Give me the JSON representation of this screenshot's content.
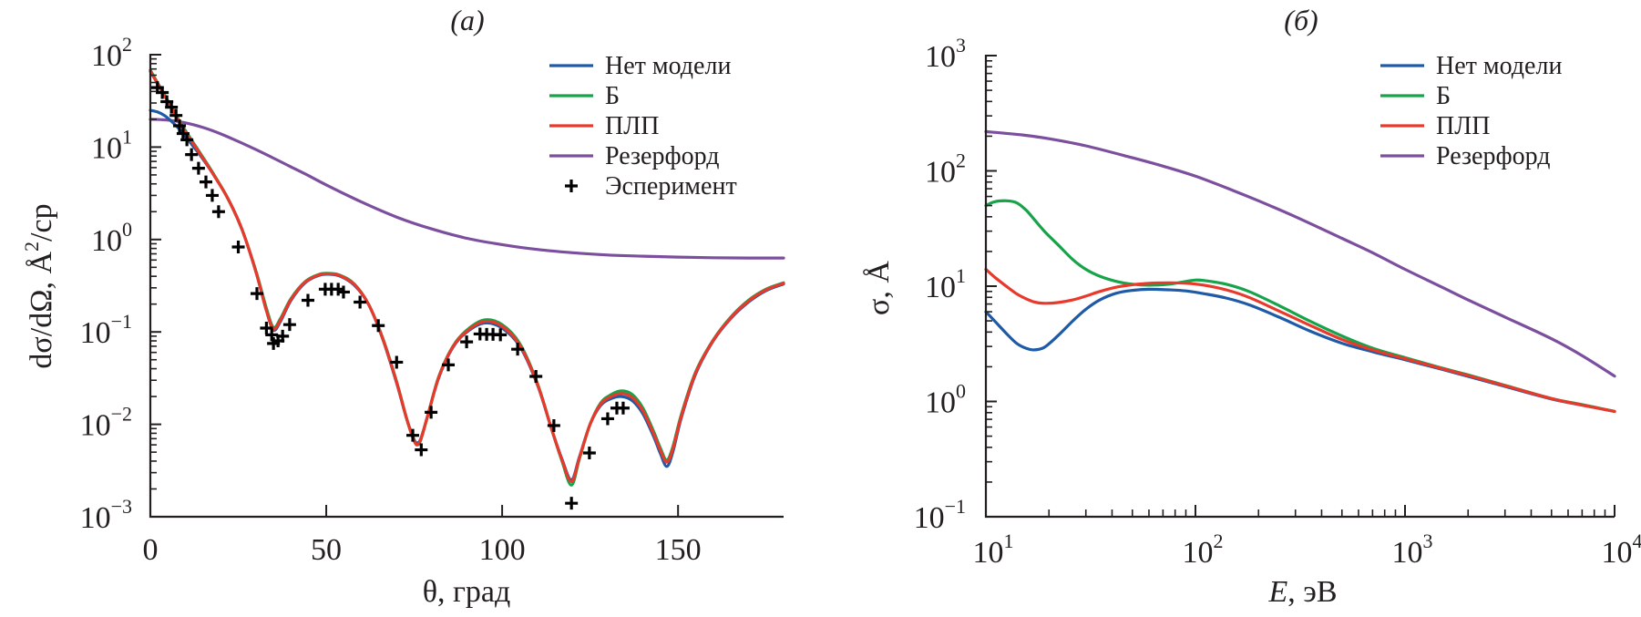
{
  "chart_data": [
    {
      "type": "line",
      "panel_title": "(a)",
      "xlabel": "θ, град",
      "ylabel": "dσ/dΩ, Å²/ср",
      "ylabel_parts": {
        "main": "dσ/dΩ, Å",
        "sup": "2",
        "tail": "/ср"
      },
      "xscale": "linear",
      "yscale": "log",
      "xlim": [
        0,
        180
      ],
      "ylim": [
        0.001,
        100
      ],
      "xticks": [
        0,
        50,
        100,
        150
      ],
      "xtick_labels": [
        "0",
        "50",
        "100",
        "150"
      ],
      "yticks_exp": [
        2,
        1,
        0,
        -1,
        -2,
        -3
      ],
      "grid": false,
      "legend_position": "top-right",
      "series": [
        {
          "name": "Нет модели",
          "color": "#1f5aa6",
          "x": [
            0,
            2,
            4,
            6,
            8,
            10,
            14,
            18,
            22,
            26,
            30,
            33,
            35,
            37,
            40,
            44,
            48,
            51,
            54,
            58,
            62,
            66,
            70,
            73,
            75,
            76,
            77,
            79,
            82,
            86,
            90,
            95,
            100,
            105,
            110,
            114,
            117,
            119.7,
            122,
            125,
            128,
            131,
            134,
            137,
            140,
            143,
            145,
            146.8,
            148.5,
            151,
            155,
            160,
            165,
            170,
            175,
            180
          ],
          "y": [
            25,
            24,
            22,
            19,
            16,
            13,
            8.3,
            5.0,
            2.8,
            1.3,
            0.45,
            0.17,
            0.105,
            0.13,
            0.22,
            0.34,
            0.41,
            0.42,
            0.4,
            0.32,
            0.2,
            0.085,
            0.028,
            0.011,
            0.0068,
            0.0063,
            0.0072,
            0.013,
            0.032,
            0.068,
            0.1,
            0.125,
            0.11,
            0.07,
            0.027,
            0.009,
            0.0042,
            0.0025,
            0.0045,
            0.01,
            0.016,
            0.019,
            0.02,
            0.018,
            0.013,
            0.0075,
            0.0048,
            0.0035,
            0.005,
            0.012,
            0.035,
            0.08,
            0.14,
            0.21,
            0.28,
            0.33
          ]
        },
        {
          "name": "Б",
          "color": "#17a34a",
          "x": [
            0,
            2,
            4,
            6,
            8,
            10,
            14,
            18,
            22,
            26,
            30,
            33,
            35,
            37,
            40,
            44,
            48,
            51,
            54,
            58,
            62,
            66,
            70,
            73,
            75,
            76,
            77,
            79,
            82,
            86,
            90,
            95,
            100,
            105,
            110,
            114,
            117,
            119.7,
            122,
            125,
            128,
            131,
            134,
            137,
            140,
            143,
            145,
            146.8,
            148.5,
            151,
            155,
            160,
            165,
            170,
            175,
            180
          ],
          "y": [
            68,
            50,
            37,
            27,
            20,
            15,
            8.8,
            5.1,
            2.8,
            1.3,
            0.46,
            0.18,
            0.112,
            0.14,
            0.23,
            0.35,
            0.42,
            0.43,
            0.41,
            0.33,
            0.2,
            0.087,
            0.029,
            0.011,
            0.0066,
            0.006,
            0.007,
            0.013,
            0.033,
            0.07,
            0.105,
            0.135,
            0.12,
            0.075,
            0.028,
            0.009,
            0.004,
            0.0022,
            0.0043,
            0.01,
            0.017,
            0.021,
            0.023,
            0.021,
            0.015,
            0.0085,
            0.0055,
            0.0041,
            0.0057,
            0.013,
            0.037,
            0.082,
            0.145,
            0.22,
            0.29,
            0.34
          ]
        },
        {
          "name": "ПЛП",
          "color": "#e8392a",
          "x": [
            0,
            2,
            4,
            6,
            8,
            10,
            14,
            18,
            22,
            26,
            30,
            33,
            35,
            37,
            40,
            44,
            48,
            51,
            54,
            58,
            62,
            66,
            70,
            73,
            75,
            76,
            77,
            79,
            82,
            86,
            90,
            95,
            100,
            105,
            110,
            114,
            117,
            119.7,
            122,
            125,
            128,
            131,
            134,
            137,
            140,
            143,
            145,
            146.8,
            148.5,
            151,
            155,
            160,
            165,
            170,
            175,
            180
          ],
          "y": [
            66,
            49,
            36,
            26.5,
            19.5,
            14.5,
            8.6,
            5.0,
            2.8,
            1.3,
            0.45,
            0.17,
            0.108,
            0.135,
            0.225,
            0.345,
            0.415,
            0.425,
            0.405,
            0.325,
            0.2,
            0.086,
            0.0285,
            0.011,
            0.0066,
            0.0061,
            0.0071,
            0.013,
            0.0325,
            0.069,
            0.102,
            0.13,
            0.115,
            0.072,
            0.0275,
            0.009,
            0.0041,
            0.0024,
            0.0044,
            0.01,
            0.0165,
            0.02,
            0.0215,
            0.0195,
            0.014,
            0.008,
            0.0052,
            0.0039,
            0.0054,
            0.0125,
            0.036,
            0.081,
            0.142,
            0.215,
            0.285,
            0.335
          ]
        },
        {
          "name": "Резерфорд",
          "color": "#7b4f9e",
          "x": [
            0,
            5,
            10,
            15,
            20,
            25,
            30,
            35,
            40,
            45,
            50,
            60,
            70,
            80,
            90,
            100,
            110,
            120,
            130,
            140,
            150,
            160,
            170,
            180
          ],
          "y": [
            20,
            19.6,
            18.3,
            16.3,
            13.9,
            11.5,
            9.4,
            7.6,
            6.1,
            4.9,
            3.9,
            2.55,
            1.75,
            1.3,
            1.03,
            0.88,
            0.78,
            0.72,
            0.68,
            0.66,
            0.645,
            0.635,
            0.63,
            0.63
          ]
        }
      ],
      "experiment": {
        "name": "Эсперимент",
        "marker": "plus",
        "color": "#000000",
        "x": [
          2,
          3.4,
          4.7,
          6,
          7.3,
          8.3,
          9.3,
          10.4,
          11.7,
          13.7,
          15.8,
          17.6,
          19.4,
          25,
          30.3,
          33,
          34.5,
          35,
          36.3,
          37.6,
          39.6,
          44.8,
          49.7,
          51.5,
          53.4,
          54.9,
          59.6,
          64.8,
          70,
          74.6,
          77,
          79.8,
          84.7,
          89.9,
          93.7,
          95.6,
          97.4,
          99.5,
          104.4,
          109.6,
          114.7,
          119.7,
          124.8,
          130,
          132.6,
          134.4
        ],
        "y": [
          44,
          39,
          31,
          27,
          22,
          17,
          14,
          12,
          8.3,
          5.9,
          4.2,
          3.0,
          2.0,
          0.83,
          0.26,
          0.11,
          0.093,
          0.075,
          0.08,
          0.09,
          0.12,
          0.22,
          0.29,
          0.29,
          0.29,
          0.27,
          0.21,
          0.117,
          0.047,
          0.0076,
          0.0053,
          0.0135,
          0.044,
          0.078,
          0.095,
          0.094,
          0.094,
          0.093,
          0.065,
          0.033,
          0.0097,
          0.0014,
          0.0049,
          0.0115,
          0.015,
          0.015
        ]
      }
    },
    {
      "type": "line",
      "panel_title": "(б)",
      "xlabel": "E, эВ",
      "xlabel_parts": {
        "italic": "E",
        "rest": ", эВ"
      },
      "ylabel": "σ, Å",
      "xscale": "log",
      "yscale": "log",
      "xlim": [
        10,
        10000
      ],
      "ylim": [
        0.1,
        1000
      ],
      "xticks_exp": [
        1,
        2,
        3,
        4
      ],
      "yticks_exp": [
        3,
        2,
        1,
        0,
        -1
      ],
      "grid": false,
      "legend_position": "top-right",
      "series": [
        {
          "name": "Нет модели",
          "color": "#1f5aa6",
          "x": [
            10,
            11,
            12.5,
            14,
            15.5,
            17,
            19,
            22,
            26,
            30,
            35,
            42,
            50,
            60,
            75,
            90,
            110,
            140,
            180,
            250,
            350,
            500,
            700,
            1000,
            1500,
            2000,
            3000,
            5000,
            7000,
            10000
          ],
          "y": [
            6.0,
            5.0,
            3.9,
            3.2,
            2.9,
            2.8,
            2.95,
            3.7,
            5.0,
            6.3,
            7.6,
            8.7,
            9.2,
            9.4,
            9.3,
            9.1,
            8.6,
            7.9,
            6.9,
            5.4,
            4.1,
            3.2,
            2.7,
            2.3,
            1.9,
            1.65,
            1.35,
            1.05,
            0.93,
            0.82
          ]
        },
        {
          "name": "Б",
          "color": "#17a34a",
          "x": [
            10,
            11,
            12.5,
            14,
            15.5,
            17,
            19,
            22,
            26,
            30,
            35,
            42,
            50,
            60,
            75,
            90,
            100,
            110,
            140,
            180,
            250,
            350,
            500,
            700,
            1000,
            1500,
            2000,
            3000,
            5000,
            7000,
            10000
          ],
          "y": [
            50,
            54,
            55,
            53,
            46,
            38,
            30,
            23,
            17,
            14,
            12.2,
            11.0,
            10.4,
            10.2,
            10.4,
            11.0,
            11.3,
            11.2,
            10.4,
            9.0,
            6.8,
            5.0,
            3.7,
            2.9,
            2.4,
            1.95,
            1.7,
            1.38,
            1.06,
            0.94,
            0.82
          ]
        },
        {
          "name": "ПЛП",
          "color": "#e8392a",
          "x": [
            10,
            11,
            12.5,
            14,
            15.5,
            17,
            19,
            22,
            26,
            30,
            35,
            42,
            50,
            60,
            75,
            90,
            110,
            140,
            180,
            250,
            350,
            500,
            700,
            1000,
            1500,
            2000,
            3000,
            5000,
            7000,
            10000
          ],
          "y": [
            14,
            12,
            10,
            8.6,
            7.8,
            7.3,
            7.1,
            7.2,
            7.6,
            8.2,
            9.0,
            9.8,
            10.3,
            10.6,
            10.7,
            10.6,
            10.2,
            9.3,
            8.0,
            6.1,
            4.6,
            3.45,
            2.8,
            2.35,
            1.93,
            1.68,
            1.37,
            1.06,
            0.93,
            0.82
          ]
        },
        {
          "name": "Резерфорд",
          "color": "#7b4f9e",
          "x": [
            10,
            15,
            20,
            30,
            50,
            70,
            100,
            150,
            200,
            300,
            500,
            700,
            1000,
            1500,
            2000,
            3000,
            5000,
            7000,
            10000
          ],
          "y": [
            219,
            205,
            190,
            165,
            130,
            110,
            90,
            68,
            55,
            40,
            26,
            19.5,
            14,
            9.8,
            7.6,
            5.4,
            3.5,
            2.5,
            1.66
          ]
        }
      ]
    }
  ]
}
